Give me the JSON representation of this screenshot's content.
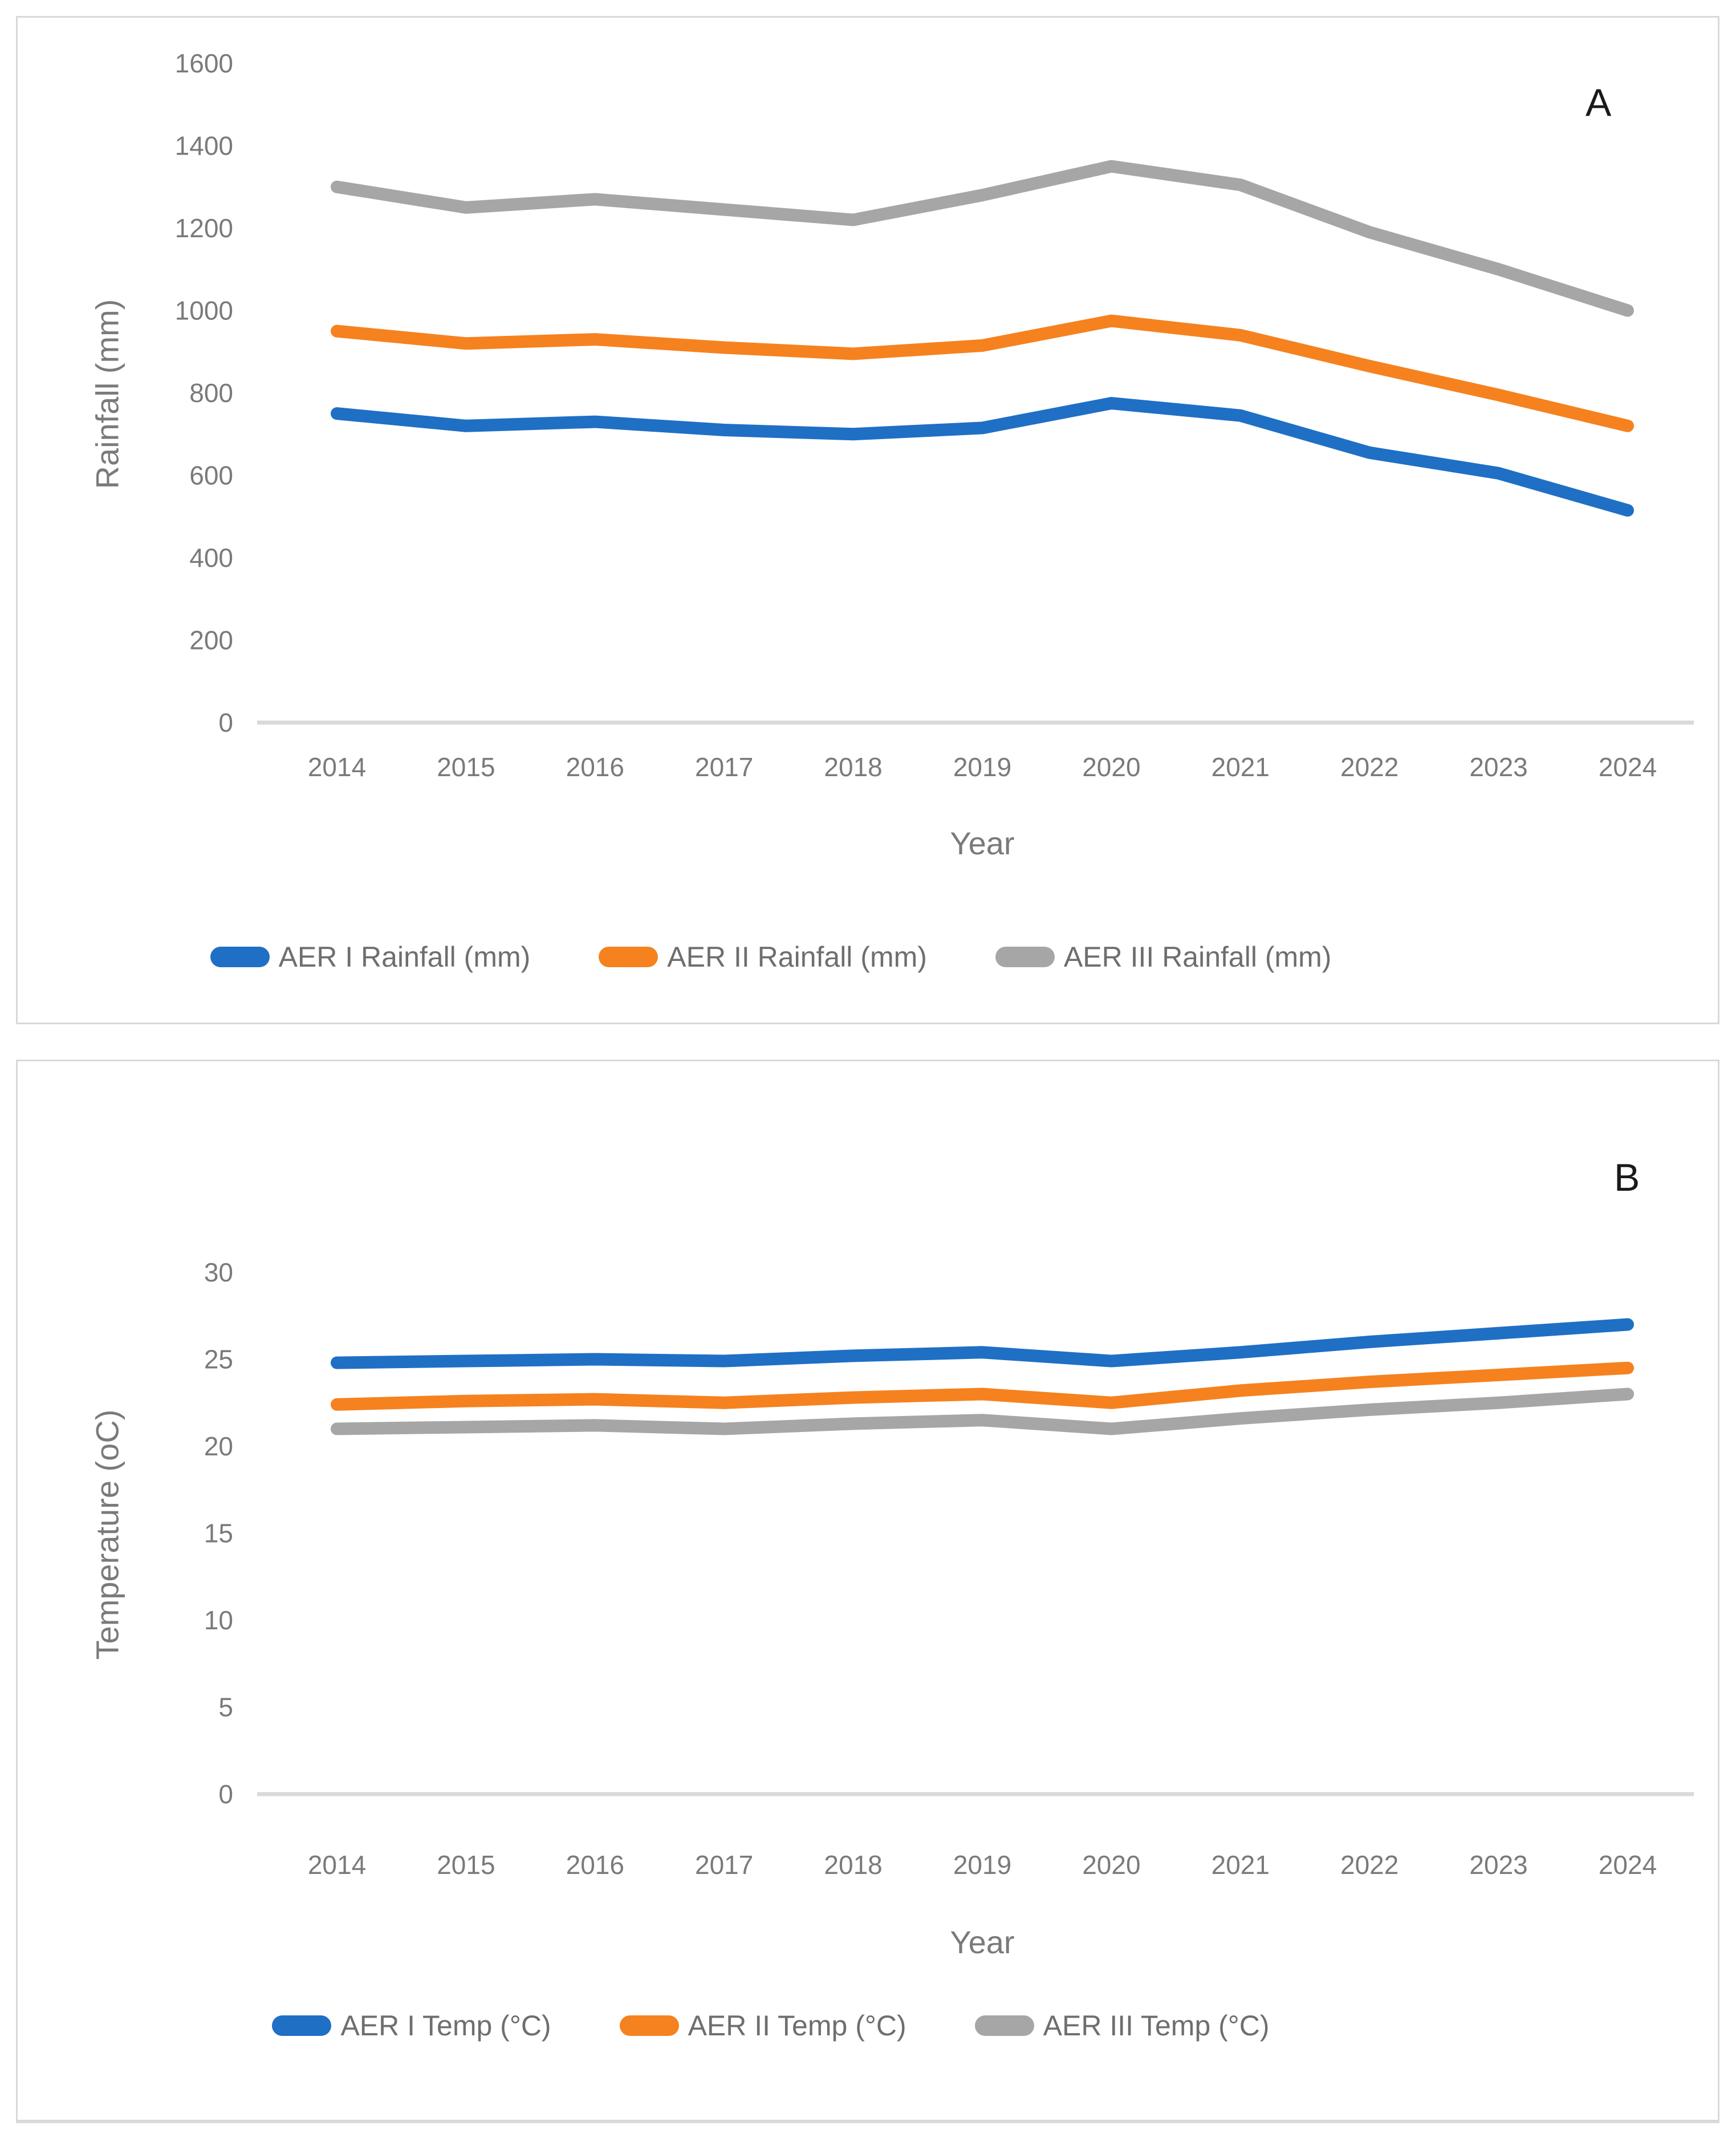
{
  "chart_data": [
    {
      "type": "line",
      "panel_label": "A",
      "xlabel": "Year",
      "ylabel": "Rainfall (mm)",
      "categories": [
        2014,
        2015,
        2016,
        2017,
        2018,
        2019,
        2020,
        2021,
        2022,
        2023,
        2024
      ],
      "ylim": [
        0,
        1600
      ],
      "ytick_step": 200,
      "grid": false,
      "legend_position": "bottom",
      "series": [
        {
          "name": "AER I Rainfall (mm)",
          "color": "#1f6fc5",
          "values": [
            750,
            720,
            730,
            710,
            700,
            715,
            775,
            745,
            655,
            605,
            515
          ]
        },
        {
          "name": "AER II Rainfall (mm)",
          "color": "#f5821f",
          "values": [
            950,
            920,
            930,
            910,
            895,
            915,
            975,
            940,
            865,
            795,
            720
          ]
        },
        {
          "name": "AER III Rainfall (mm)",
          "color": "#a6a6a6",
          "values": [
            1300,
            1250,
            1270,
            1245,
            1220,
            1280,
            1350,
            1305,
            1190,
            1100,
            1000
          ]
        }
      ]
    },
    {
      "type": "line",
      "panel_label": "B",
      "xlabel": "Year",
      "ylabel": "Temperature (oC)",
      "categories": [
        2014,
        2015,
        2016,
        2017,
        2018,
        2019,
        2020,
        2021,
        2022,
        2023,
        2024
      ],
      "ylim": [
        0,
        30
      ],
      "ytick_step": 5,
      "grid": false,
      "legend_position": "bottom",
      "series": [
        {
          "name": "AER I Temp (°C)",
          "color": "#1f6fc5",
          "values": [
            24.8,
            24.9,
            25.0,
            24.9,
            25.2,
            25.4,
            24.9,
            25.4,
            26.0,
            26.5,
            27.0
          ]
        },
        {
          "name": "AER II Temp (°C)",
          "color": "#f5821f",
          "values": [
            22.4,
            22.6,
            22.7,
            22.5,
            22.8,
            23.0,
            22.5,
            23.2,
            23.7,
            24.1,
            24.5
          ]
        },
        {
          "name": "AER III Temp (°C)",
          "color": "#a6a6a6",
          "values": [
            21.0,
            21.1,
            21.2,
            21.0,
            21.3,
            21.5,
            21.0,
            21.6,
            22.1,
            22.5,
            23.0
          ]
        }
      ]
    }
  ]
}
